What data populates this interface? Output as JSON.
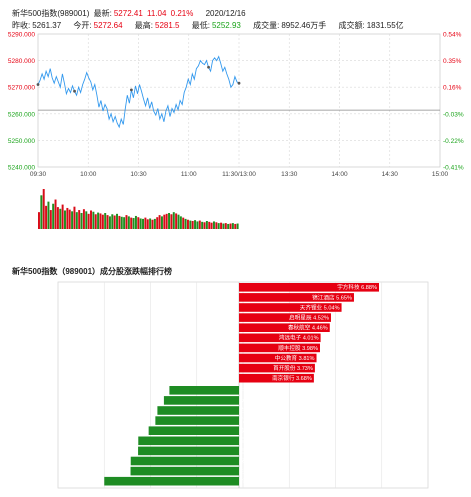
{
  "header": {
    "name": "新华500指数(989001)",
    "latest_label": "最新:",
    "latest": "5272.41",
    "change": "11.04",
    "change_pct": "0.21%",
    "date": "2020/12/16",
    "prev_close_label": "昨收:",
    "prev_close": "5261.37",
    "open_label": "今开:",
    "open": "5272.64",
    "high_label": "最高:",
    "high": "5281.5",
    "low_label": "最低:",
    "low": "5252.93",
    "volume_label": "成交量:",
    "volume": "8952.46万手",
    "amount_label": "成交额:",
    "amount": "1831.55亿"
  },
  "ranking_title": "新华500指数（989001）成分股涨跌幅排行榜",
  "colors": {
    "up": "#e60012",
    "down": "#19a319",
    "line": "#3399ee",
    "bar_up": "#d80c18",
    "bar_down": "#1f8f1f"
  },
  "chart_data": [
    {
      "type": "line",
      "title": "",
      "x_ticks": [
        "09:30",
        "10:00",
        "10:30",
        "11:00",
        "11:30/13:00",
        "13:30",
        "14:00",
        "14:30",
        "15:00"
      ],
      "y_left_ticks": [
        5290,
        5280,
        5270,
        5260,
        5250,
        5240
      ],
      "y_right_ticks": [
        "0.54%",
        "0.35%",
        "0.16%",
        "-0.03%",
        "-0.22%",
        "-0.41%"
      ],
      "ylim": [
        5240,
        5290
      ],
      "prev_close": 5261.37,
      "series": [
        {
          "values": [
            5271,
            5272.5,
            5275,
            5273,
            5276,
            5274,
            5277,
            5273.5,
            5271.5,
            5274,
            5272,
            5270,
            5275,
            5271.5,
            5267.5,
            5269.5,
            5268,
            5270.5,
            5268.5,
            5267,
            5270,
            5268,
            5271,
            5273,
            5275.5,
            5273.5,
            5272,
            5269,
            5271,
            5267,
            5262.5,
            5265,
            5261,
            5263.5,
            5262,
            5258,
            5260,
            5257,
            5259,
            5256.5,
            5255,
            5258,
            5256,
            5262,
            5267,
            5264,
            5269,
            5266,
            5270.5,
            5267.5,
            5271,
            5268.5,
            5265.5,
            5263,
            5266,
            5262,
            5264.5,
            5261,
            5259.5,
            5262,
            5258,
            5260,
            5257,
            5261,
            5263,
            5259,
            5262,
            5260.5,
            5263.5,
            5261.5,
            5265,
            5263.5,
            5268,
            5270,
            5273,
            5271,
            5275,
            5273,
            5277,
            5278,
            5280,
            5279,
            5278.5,
            5280,
            5277.5,
            5276,
            5280,
            5281,
            5280,
            5281.5,
            5279,
            5276,
            5277.5,
            5275,
            5273,
            5270,
            5271,
            5274,
            5272,
            5271.5
          ],
          "markers": [
            5271,
            5270,
            5275,
            5280,
            5272.5
          ]
        }
      ]
    },
    {
      "type": "bar",
      "title": "",
      "volumes": [
        40,
        80,
        95,
        55,
        65,
        45,
        60,
        70,
        52,
        48,
        58,
        44,
        50,
        46,
        42,
        53,
        40,
        45,
        38,
        47,
        42,
        36,
        44,
        41,
        35,
        39,
        37,
        34,
        38,
        33,
        30,
        35,
        32,
        36,
        31,
        29,
        28,
        33,
        30,
        27,
        26,
        31,
        28,
        25,
        24,
        27,
        23,
        25,
        22,
        24,
        28,
        33,
        30,
        34,
        36,
        38,
        35,
        40,
        37,
        34,
        30,
        27,
        24,
        22,
        20,
        19,
        21,
        18,
        20,
        17,
        16,
        19,
        17,
        15,
        18,
        16,
        14,
        15,
        13,
        14,
        12,
        13,
        14,
        12,
        13
      ],
      "directions": [
        "u",
        "d",
        "u",
        "u",
        "d",
        "u",
        "d",
        "u",
        "u",
        "d",
        "u",
        "d",
        "u",
        "u",
        "d",
        "u",
        "d",
        "u",
        "d",
        "u",
        "d",
        "u",
        "u",
        "d",
        "u",
        "d",
        "u",
        "u",
        "d",
        "u",
        "d",
        "d",
        "u",
        "d",
        "u",
        "d",
        "d",
        "u",
        "d",
        "u",
        "d",
        "d",
        "u",
        "d",
        "d",
        "u",
        "u",
        "d",
        "u",
        "d",
        "u",
        "u",
        "d",
        "u",
        "u",
        "d",
        "u",
        "d",
        "u",
        "d",
        "d",
        "u",
        "d",
        "u",
        "d",
        "u",
        "d",
        "d",
        "u",
        "d",
        "u",
        "d",
        "u",
        "u",
        "d",
        "u",
        "d",
        "u",
        "d",
        "u",
        "d",
        "u",
        "d",
        "u",
        "d"
      ]
    },
    {
      "type": "bar",
      "title": "新华500指数（989001）成分股涨跌幅排行榜",
      "gainers": [
        {
          "name": "宇方科技",
          "value": 6.88
        },
        {
          "name": "锦江酒店",
          "value": 5.65
        },
        {
          "name": "天齐锂业",
          "value": 5.04
        },
        {
          "name": "启明星辰",
          "value": 4.52
        },
        {
          "name": "春秋航空",
          "value": 4.46
        },
        {
          "name": "鸿远电子",
          "value": 4.01
        },
        {
          "name": "顺丰控股",
          "value": 3.98
        },
        {
          "name": "中公教育",
          "value": 3.81
        },
        {
          "name": "首开股份",
          "value": 3.73
        },
        {
          "name": "南京银行",
          "value": 3.68
        }
      ],
      "losers": [
        {
          "name": "中国巨石",
          "value": -3.42
        },
        {
          "name": "大参林",
          "value": -3.69
        },
        {
          "name": "芒果超媒",
          "value": -4.01
        },
        {
          "name": "亿联网络",
          "value": -4.11
        },
        {
          "name": "美年健康",
          "value": -4.44
        },
        {
          "name": "国药股份",
          "value": -4.95
        },
        {
          "name": "国瓷材料",
          "value": -4.96
        },
        {
          "name": "安琪酵母",
          "value": -5.32
        },
        {
          "name": "坦内集团",
          "value": -5.33
        },
        {
          "name": "恒润重金",
          "value": -6.62
        }
      ]
    }
  ]
}
